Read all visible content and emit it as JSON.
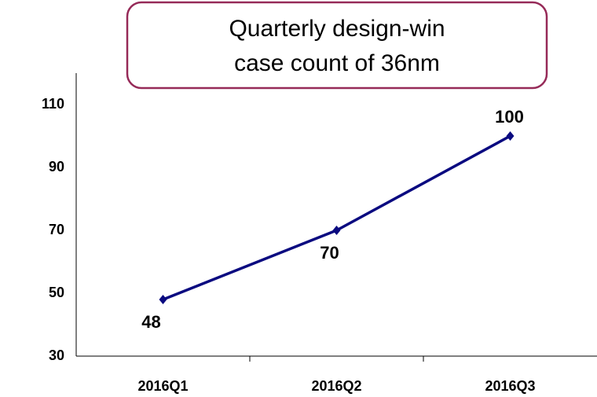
{
  "chart_data": {
    "type": "line",
    "title": [
      "Quarterly design-win",
      "case count of 36nm"
    ],
    "categories": [
      "2016Q1",
      "2016Q2",
      "2016Q3"
    ],
    "values": [
      48,
      70,
      100
    ],
    "color": "#0a0a80",
    "ylim": [
      30,
      120
    ],
    "yticks": [
      30,
      50,
      70,
      90,
      110
    ],
    "grid": false
  }
}
